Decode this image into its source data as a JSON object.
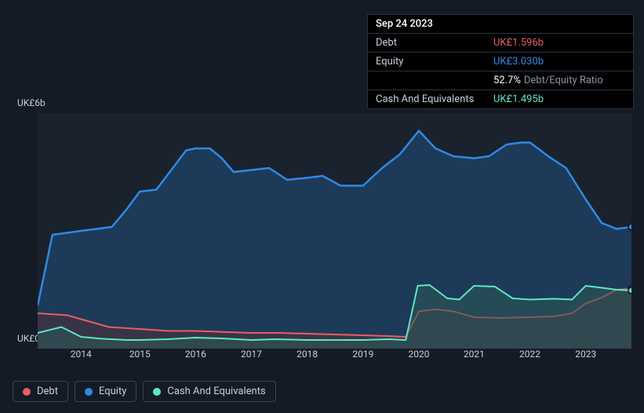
{
  "tooltip": {
    "date": "Sep 24 2023",
    "rows": [
      {
        "label": "Debt",
        "value": "UK£1.596b",
        "color": "#e85d66"
      },
      {
        "label": "Equity",
        "value": "UK£3.030b",
        "color": "#2e8ae6"
      },
      {
        "label": "",
        "value": "52.7%",
        "extra": "Debt/Equity Ratio",
        "color": "#ffffff"
      },
      {
        "label": "Cash And Equivalents",
        "value": "UK£1.495b",
        "color": "#5de6c4"
      }
    ]
  },
  "chart": {
    "type": "area",
    "background_color": "#151b24",
    "plot_background_color": "#1a222d",
    "y_axis": {
      "min": 0,
      "max": 6,
      "top_label": "UK£6b",
      "bottom_label": "UK£0"
    },
    "x_axis": {
      "ticks": [
        "2014",
        "2015",
        "2016",
        "2017",
        "2018",
        "2019",
        "2020",
        "2021",
        "2022",
        "2023"
      ],
      "tick_positions": [
        0.073,
        0.172,
        0.266,
        0.36,
        0.454,
        0.548,
        0.642,
        0.735,
        0.829,
        0.923
      ]
    },
    "series": [
      {
        "name": "Equity",
        "color": "#2e8ae6",
        "fill": "#1e4870",
        "fill_opacity": 0.65,
        "line_width": 2.5,
        "points": [
          [
            0.0,
            1.1
          ],
          [
            0.025,
            2.9
          ],
          [
            0.05,
            2.95
          ],
          [
            0.073,
            3.0
          ],
          [
            0.1,
            3.05
          ],
          [
            0.125,
            3.1
          ],
          [
            0.15,
            3.55
          ],
          [
            0.172,
            4.0
          ],
          [
            0.2,
            4.05
          ],
          [
            0.225,
            4.55
          ],
          [
            0.25,
            5.05
          ],
          [
            0.266,
            5.1
          ],
          [
            0.29,
            5.1
          ],
          [
            0.31,
            4.85
          ],
          [
            0.33,
            4.5
          ],
          [
            0.36,
            4.55
          ],
          [
            0.39,
            4.6
          ],
          [
            0.42,
            4.3
          ],
          [
            0.454,
            4.35
          ],
          [
            0.48,
            4.4
          ],
          [
            0.51,
            4.15
          ],
          [
            0.548,
            4.15
          ],
          [
            0.58,
            4.6
          ],
          [
            0.61,
            4.95
          ],
          [
            0.642,
            5.55
          ],
          [
            0.67,
            5.1
          ],
          [
            0.7,
            4.9
          ],
          [
            0.735,
            4.85
          ],
          [
            0.76,
            4.9
          ],
          [
            0.79,
            5.2
          ],
          [
            0.815,
            5.25
          ],
          [
            0.829,
            5.25
          ],
          [
            0.86,
            4.9
          ],
          [
            0.89,
            4.6
          ],
          [
            0.923,
            3.8
          ],
          [
            0.95,
            3.2
          ],
          [
            0.975,
            3.05
          ],
          [
            1.0,
            3.1
          ]
        ]
      },
      {
        "name": "Debt",
        "color": "#e85d66",
        "fill": "#5a2f34",
        "fill_opacity": 0.45,
        "line_width": 2,
        "points": [
          [
            0.0,
            0.9
          ],
          [
            0.05,
            0.85
          ],
          [
            0.073,
            0.75
          ],
          [
            0.12,
            0.55
          ],
          [
            0.172,
            0.5
          ],
          [
            0.22,
            0.45
          ],
          [
            0.266,
            0.45
          ],
          [
            0.32,
            0.42
          ],
          [
            0.36,
            0.4
          ],
          [
            0.41,
            0.4
          ],
          [
            0.454,
            0.38
          ],
          [
            0.5,
            0.36
          ],
          [
            0.548,
            0.34
          ],
          [
            0.59,
            0.32
          ],
          [
            0.62,
            0.3
          ],
          [
            0.642,
            0.95
          ],
          [
            0.67,
            1.0
          ],
          [
            0.7,
            0.95
          ],
          [
            0.735,
            0.8
          ],
          [
            0.78,
            0.78
          ],
          [
            0.829,
            0.8
          ],
          [
            0.87,
            0.82
          ],
          [
            0.9,
            0.9
          ],
          [
            0.923,
            1.15
          ],
          [
            0.95,
            1.3
          ],
          [
            0.975,
            1.5
          ],
          [
            1.0,
            1.52
          ]
        ]
      },
      {
        "name": "Cash And Equivalents",
        "color": "#5de6c4",
        "fill": "#2a5a56",
        "fill_opacity": 0.55,
        "line_width": 2,
        "points": [
          [
            0.0,
            0.4
          ],
          [
            0.04,
            0.55
          ],
          [
            0.073,
            0.3
          ],
          [
            0.11,
            0.25
          ],
          [
            0.15,
            0.22
          ],
          [
            0.172,
            0.22
          ],
          [
            0.22,
            0.24
          ],
          [
            0.266,
            0.28
          ],
          [
            0.31,
            0.26
          ],
          [
            0.36,
            0.22
          ],
          [
            0.4,
            0.24
          ],
          [
            0.454,
            0.22
          ],
          [
            0.5,
            0.22
          ],
          [
            0.548,
            0.22
          ],
          [
            0.59,
            0.24
          ],
          [
            0.62,
            0.22
          ],
          [
            0.64,
            1.6
          ],
          [
            0.66,
            1.62
          ],
          [
            0.69,
            1.28
          ],
          [
            0.71,
            1.25
          ],
          [
            0.735,
            1.6
          ],
          [
            0.77,
            1.58
          ],
          [
            0.8,
            1.28
          ],
          [
            0.829,
            1.25
          ],
          [
            0.87,
            1.27
          ],
          [
            0.9,
            1.25
          ],
          [
            0.923,
            1.6
          ],
          [
            0.95,
            1.55
          ],
          [
            0.975,
            1.5
          ],
          [
            1.0,
            1.48
          ]
        ]
      }
    ],
    "marker": {
      "x": 1.0,
      "radius": 4
    }
  },
  "legend": {
    "items": [
      {
        "label": "Debt",
        "color": "#e85d66"
      },
      {
        "label": "Equity",
        "color": "#2e8ae6"
      },
      {
        "label": "Cash And Equivalents",
        "color": "#5de6c4"
      }
    ]
  }
}
